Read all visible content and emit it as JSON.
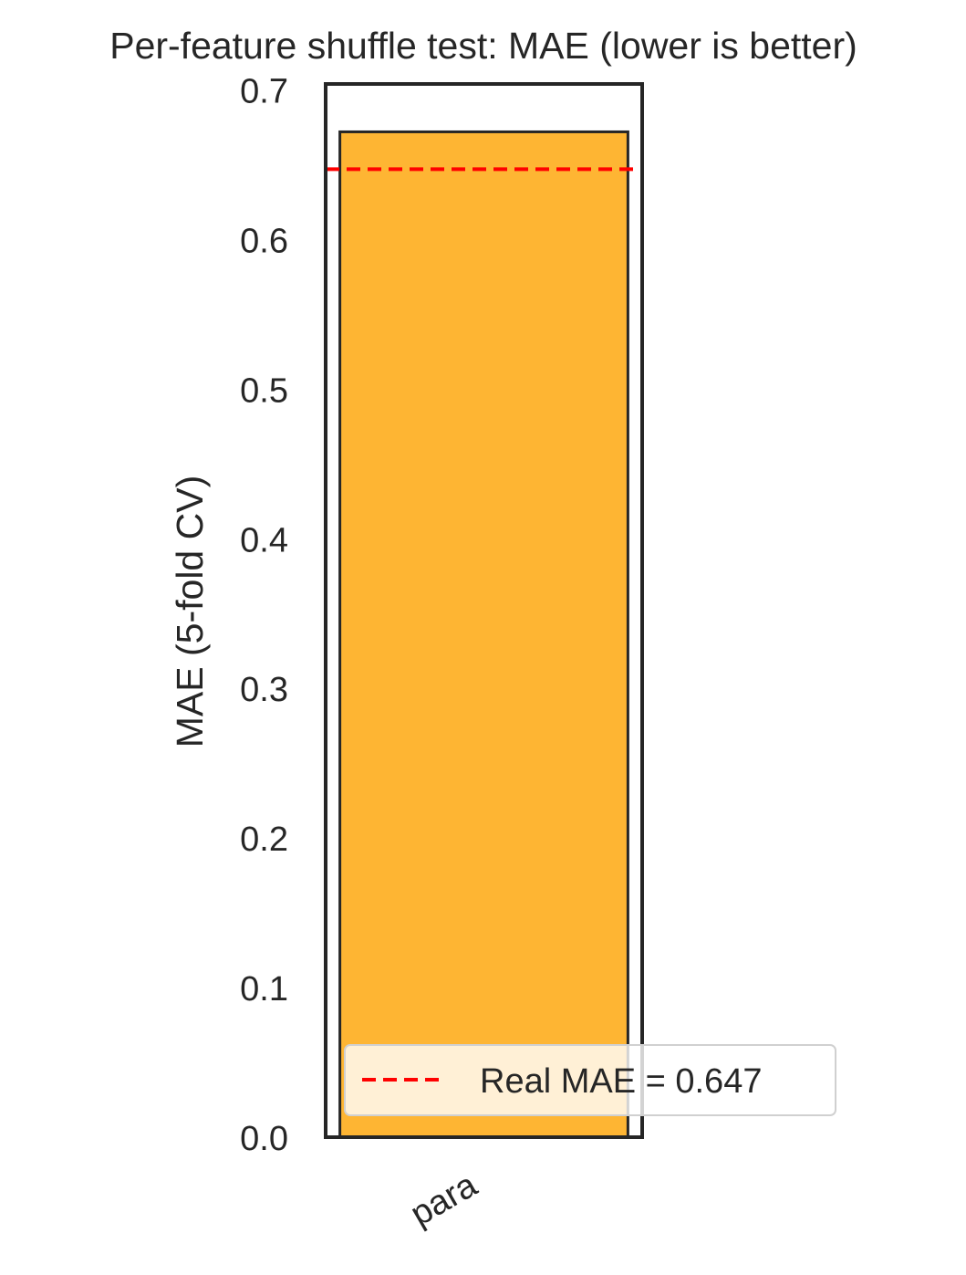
{
  "chart_data": {
    "type": "bar",
    "title": "Per-feature shuffle test: MAE (lower is better)",
    "xlabel": "",
    "ylabel": "MAE (5-fold CV)",
    "categories": [
      "para"
    ],
    "values": [
      0.672
    ],
    "ylim": [
      0,
      0.704
    ],
    "yticks": [
      "0.0",
      "0.1",
      "0.2",
      "0.3",
      "0.4",
      "0.5",
      "0.6",
      "0.7"
    ],
    "reference_line": {
      "value": 0.647,
      "style": "dashed",
      "color": "#ff0000",
      "label": "Real MAE = 0.647"
    },
    "bar_color": "#feb533",
    "legend_position": "lower right",
    "grid": false
  }
}
